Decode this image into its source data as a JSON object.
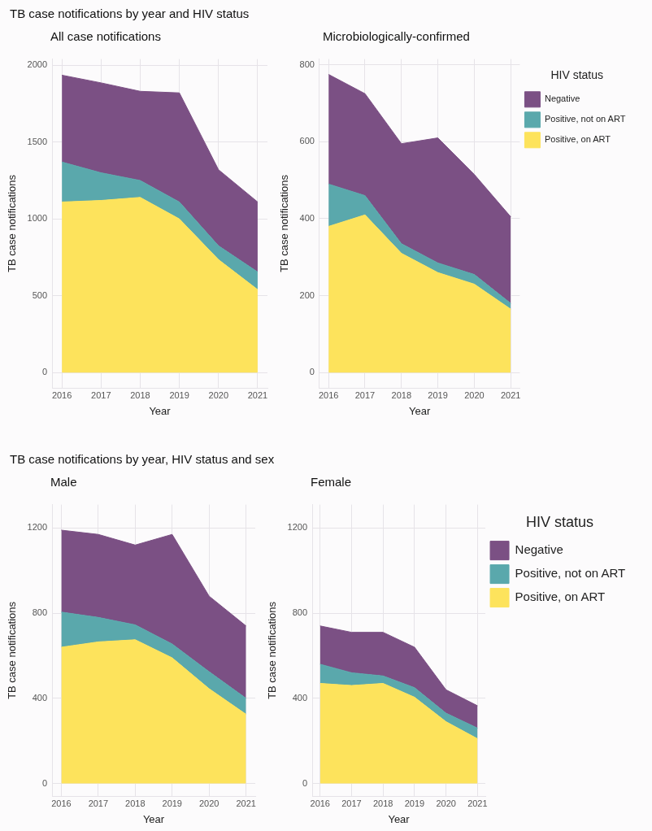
{
  "chart_data": [
    {
      "type": "area",
      "title": "TB case notifications by year and HIV status",
      "subtitle": "All case notifications",
      "xlabel": "Year",
      "ylabel": "TB case notifications",
      "stacked": true,
      "x": [
        2016,
        2017,
        2018,
        2019,
        2020,
        2021
      ],
      "xlim": [
        2015.75,
        2021.25
      ],
      "xticks": [
        2016,
        2017,
        2018,
        2019,
        2020,
        2021
      ],
      "ylim": [
        -100,
        2040
      ],
      "yticks": [
        0,
        500,
        1000,
        1500,
        2000
      ],
      "grid": true,
      "legend": false,
      "series": [
        {
          "color": "#fde35c",
          "values": [
            1110,
            1120,
            1140,
            1000,
            735,
            540
          ]
        },
        {
          "color": "#5aa8ac",
          "values": [
            260,
            180,
            110,
            110,
            90,
            115
          ]
        },
        {
          "color": "#7b5084",
          "values": [
            565,
            585,
            580,
            710,
            495,
            455
          ]
        }
      ]
    },
    {
      "type": "area",
      "subtitle": "Microbiologically-confirmed",
      "xlabel": "Year",
      "ylabel": "TB case notifications",
      "legend_title": "HIV status",
      "stacked": true,
      "x": [
        2016,
        2017,
        2018,
        2019,
        2020,
        2021
      ],
      "xlim": [
        2015.75,
        2021.25
      ],
      "xticks": [
        2016,
        2017,
        2018,
        2019,
        2020,
        2021
      ],
      "ylim": [
        -40,
        815
      ],
      "yticks": [
        0,
        200,
        400,
        600,
        800
      ],
      "grid": true,
      "legend": "right",
      "series": [
        {
          "name": "Positive, on ART",
          "color": "#fde35c",
          "values": [
            380,
            410,
            310,
            260,
            230,
            165
          ]
        },
        {
          "name": "Positive, not on ART",
          "color": "#5aa8ac",
          "values": [
            110,
            50,
            25,
            25,
            25,
            15
          ]
        },
        {
          "name": "Negative",
          "color": "#7b5084",
          "values": [
            285,
            265,
            260,
            325,
            260,
            225
          ]
        }
      ]
    },
    {
      "type": "area",
      "title": "TB case notifications by year, HIV status and sex",
      "subtitle": "Male",
      "xlabel": "Year",
      "ylabel": "TB case notifications",
      "stacked": true,
      "x": [
        2016,
        2017,
        2018,
        2019,
        2020,
        2021
      ],
      "xlim": [
        2015.75,
        2021.25
      ],
      "xticks": [
        2016,
        2017,
        2018,
        2019,
        2020,
        2021
      ],
      "ylim": [
        -60,
        1310
      ],
      "yticks": [
        0,
        400,
        800,
        1200
      ],
      "grid": true,
      "legend": false,
      "series": [
        {
          "color": "#fde35c",
          "values": [
            640,
            665,
            675,
            590,
            445,
            325
          ]
        },
        {
          "color": "#5aa8ac",
          "values": [
            165,
            115,
            70,
            65,
            80,
            75
          ]
        },
        {
          "color": "#7b5084",
          "values": [
            385,
            390,
            375,
            515,
            355,
            340
          ]
        }
      ]
    },
    {
      "type": "area",
      "subtitle": "Female",
      "xlabel": "Year",
      "ylabel": "TB case notifications",
      "legend_title": "HIV status",
      "stacked": true,
      "x": [
        2016,
        2017,
        2018,
        2019,
        2020,
        2021
      ],
      "xlim": [
        2015.75,
        2021.25
      ],
      "xticks": [
        2016,
        2017,
        2018,
        2019,
        2020,
        2021
      ],
      "ylim": [
        -60,
        1310
      ],
      "yticks": [
        0,
        400,
        800,
        1200
      ],
      "grid": true,
      "legend": "right",
      "series": [
        {
          "name": "Positive, on ART",
          "color": "#fde35c",
          "values": [
            470,
            460,
            470,
            405,
            290,
            210
          ]
        },
        {
          "name": "Positive, not on ART",
          "color": "#5aa8ac",
          "values": [
            90,
            60,
            35,
            45,
            40,
            50
          ]
        },
        {
          "name": "Negative",
          "color": "#7b5084",
          "values": [
            180,
            190,
            205,
            190,
            110,
            105
          ]
        }
      ]
    }
  ]
}
